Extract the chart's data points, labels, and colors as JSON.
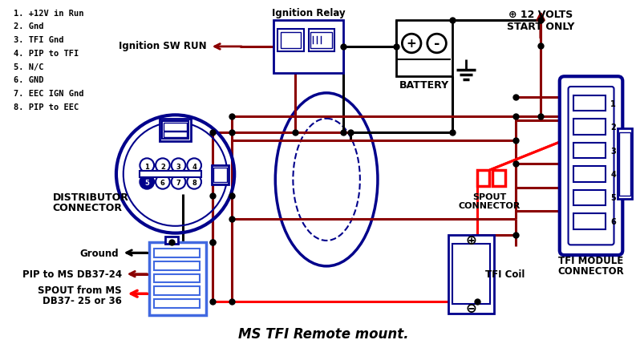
{
  "bg_color": "#ffffff",
  "title": "MS TFI Remote mount.",
  "dark_red": "#8B0000",
  "red": "#FF0000",
  "blue": "#00008B",
  "black": "#000000",
  "light_blue": "#4169E1",
  "pin_labels": [
    "1. +12V in Run",
    "2. Gnd",
    "3. TFI Gnd",
    "4. PIP to TFI",
    "5. N/C",
    "6. GND",
    "7. EEC IGN Gnd",
    "8. PIP to EEC"
  ],
  "dist_label_1": "DISTRIBUTOR",
  "dist_label_2": "CONNECTOR",
  "ignition_relay_label": "Ignition Relay",
  "ignition_sw_label": "Ignition SW RUN",
  "battery_label": "BATTERY",
  "ground_label": "Ground",
  "pip_ms_label": "PIP to MS DB37-24",
  "spout_label_1": "SPOUT from MS",
  "spout_label_2": "DB37- 25 or 36",
  "spout_conn_label_1": "SPOUT",
  "spout_conn_label_2": "CONNECTOR",
  "tfi_coil_label": "TFI Coil",
  "tfi_module_label_1": "TFI MODULE",
  "tfi_module_label_2": "CONNECTOR",
  "volts_label_1": "⊕ 12 VOLTS",
  "volts_label_2": "START ONLY"
}
